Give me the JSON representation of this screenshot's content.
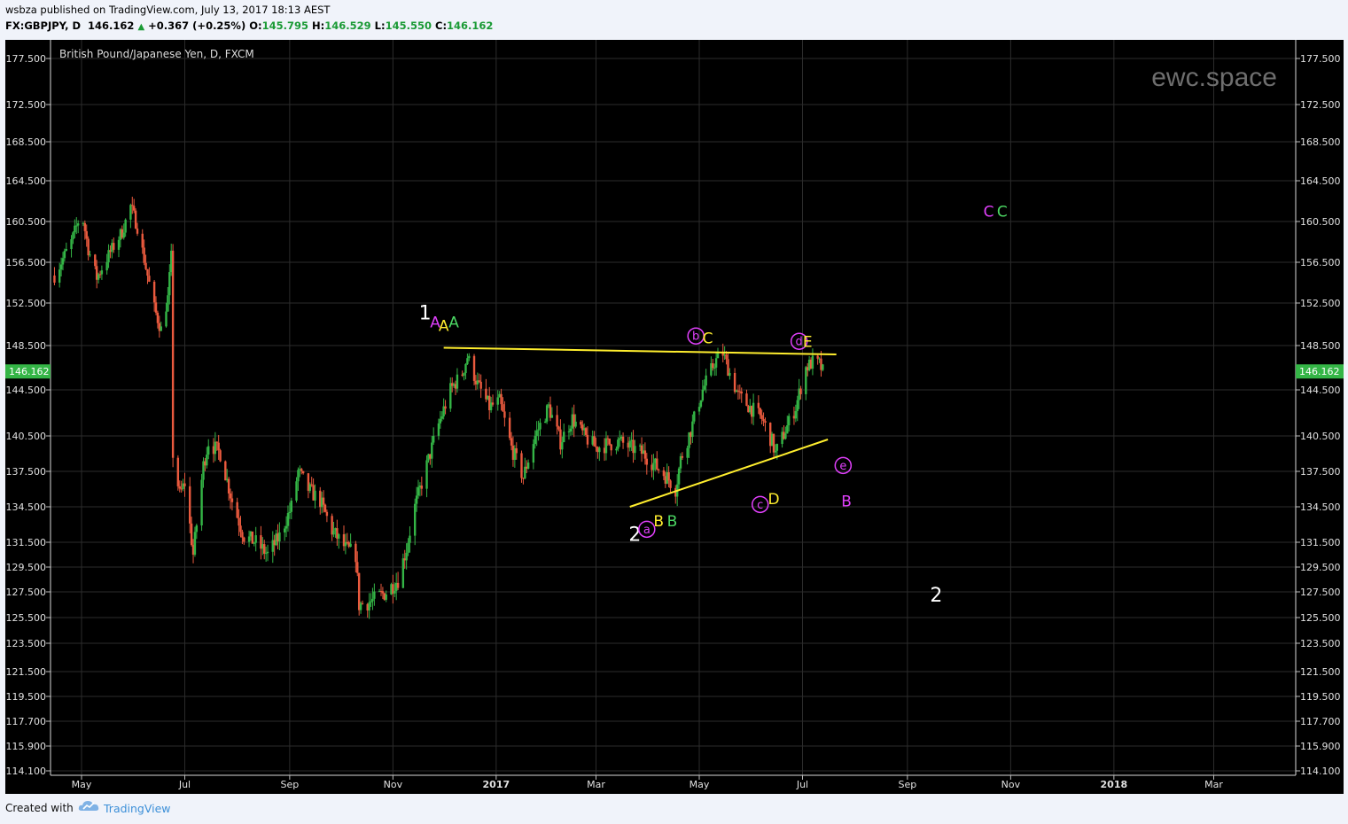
{
  "header": {
    "publish_line": "wsbza published on TradingView.com, July 13, 2017 18:13 AEST",
    "symbol": "FX:GBPJPY, D",
    "last": "146.162",
    "change": "+0.367 (+0.25%)",
    "o_label": "O:",
    "o_value": "145.795",
    "h_label": "H:",
    "h_value": "146.529",
    "l_label": "L:",
    "l_value": "145.550",
    "c_label": "C:",
    "c_value": "146.162"
  },
  "footer": {
    "created_with": "Created with",
    "brand": "TradingView"
  },
  "colors": {
    "up": "#34b546",
    "down": "#ea5a3e",
    "background": "#000000",
    "trendline": "#ffee2e",
    "badge": "#34b546"
  },
  "chart_data": {
    "type": "candlestick",
    "title": "British Pound/Japanese Yen, D, FXCM",
    "watermark": "ewc.space",
    "last_price_label": "146.162",
    "y_ticks": [
      "177.500",
      "172.500",
      "168.500",
      "164.500",
      "160.500",
      "156.500",
      "152.500",
      "148.500",
      "144.500",
      "140.500",
      "137.500",
      "134.500",
      "131.500",
      "129.500",
      "127.500",
      "125.500",
      "123.500",
      "121.500",
      "119.500",
      "117.700",
      "115.900",
      "114.100"
    ],
    "x_ticks": [
      {
        "label": "May",
        "date": "2016-05-01",
        "bold": false
      },
      {
        "label": "Jul",
        "date": "2016-07-01",
        "bold": false
      },
      {
        "label": "Sep",
        "date": "2016-09-01",
        "bold": false
      },
      {
        "label": "Nov",
        "date": "2016-11-01",
        "bold": false
      },
      {
        "label": "2017",
        "date": "2017-01-01",
        "bold": true
      },
      {
        "label": "Mar",
        "date": "2017-03-01",
        "bold": false
      },
      {
        "label": "May",
        "date": "2017-05-01",
        "bold": false
      },
      {
        "label": "Jul",
        "date": "2017-07-01",
        "bold": false
      },
      {
        "label": "Sep",
        "date": "2017-09-01",
        "bold": false
      },
      {
        "label": "Nov",
        "date": "2017-11-01",
        "bold": false
      },
      {
        "label": "2018",
        "date": "2018-01-01",
        "bold": true
      },
      {
        "label": "Mar",
        "date": "2018-03-01",
        "bold": false
      }
    ],
    "price_path": [
      [
        "2016-04-15",
        155.2
      ],
      [
        "2016-04-25",
        158.5
      ],
      [
        "2016-05-01",
        161.5
      ],
      [
        "2016-05-05",
        157.8
      ],
      [
        "2016-05-10",
        155.0
      ],
      [
        "2016-05-18",
        157.5
      ],
      [
        "2016-05-25",
        159.5
      ],
      [
        "2016-05-30",
        162.0
      ],
      [
        "2016-06-03",
        160.0
      ],
      [
        "2016-06-08",
        156.0
      ],
      [
        "2016-06-13",
        152.0
      ],
      [
        "2016-06-17",
        150.0
      ],
      [
        "2016-06-21",
        153.0
      ],
      [
        "2016-06-23",
        157.0
      ],
      [
        "2016-06-24",
        139.0
      ],
      [
        "2016-06-28",
        135.5
      ],
      [
        "2016-07-01",
        136.5
      ],
      [
        "2016-07-06",
        130.5
      ],
      [
        "2016-07-12",
        138.0
      ],
      [
        "2016-07-15",
        140.0
      ],
      [
        "2016-07-22",
        139.0
      ],
      [
        "2016-07-29",
        135.0
      ],
      [
        "2016-08-05",
        132.0
      ],
      [
        "2016-08-12",
        131.5
      ],
      [
        "2016-08-19",
        130.5
      ],
      [
        "2016-08-26",
        132.0
      ],
      [
        "2016-09-02",
        134.5
      ],
      [
        "2016-09-06",
        137.5
      ],
      [
        "2016-09-12",
        136.0
      ],
      [
        "2016-09-19",
        135.0
      ],
      [
        "2016-09-26",
        132.5
      ],
      [
        "2016-10-04",
        131.0
      ],
      [
        "2016-10-10",
        130.5
      ],
      [
        "2016-10-12",
        126.5
      ],
      [
        "2016-10-20",
        126.8
      ],
      [
        "2016-10-28",
        127.5
      ],
      [
        "2016-11-04",
        128.5
      ],
      [
        "2016-11-09",
        131.0
      ],
      [
        "2016-11-14",
        134.5
      ],
      [
        "2016-11-21",
        138.0
      ],
      [
        "2016-11-28",
        141.5
      ],
      [
        "2016-12-05",
        144.5
      ],
      [
        "2016-12-12",
        146.0
      ],
      [
        "2016-12-15",
        147.5
      ],
      [
        "2016-12-21",
        145.0
      ],
      [
        "2016-12-28",
        143.0
      ],
      [
        "2017-01-03",
        143.5
      ],
      [
        "2017-01-10",
        139.5
      ],
      [
        "2017-01-17",
        137.0
      ],
      [
        "2017-01-24",
        140.5
      ],
      [
        "2017-02-01",
        143.0
      ],
      [
        "2017-02-08",
        140.0
      ],
      [
        "2017-02-15",
        142.0
      ],
      [
        "2017-02-22",
        140.5
      ],
      [
        "2017-03-01",
        139.5
      ],
      [
        "2017-03-08",
        139.8
      ],
      [
        "2017-03-15",
        140.0
      ],
      [
        "2017-03-22",
        139.5
      ],
      [
        "2017-03-29",
        139.0
      ],
      [
        "2017-04-05",
        138.0
      ],
      [
        "2017-04-12",
        137.0
      ],
      [
        "2017-04-17",
        136.0
      ],
      [
        "2017-04-20",
        138.5
      ],
      [
        "2017-04-26",
        141.0
      ],
      [
        "2017-05-03",
        144.5
      ],
      [
        "2017-05-10",
        147.0
      ],
      [
        "2017-05-15",
        147.8
      ],
      [
        "2017-05-19",
        146.0
      ],
      [
        "2017-05-24",
        144.0
      ],
      [
        "2017-05-31",
        143.0
      ],
      [
        "2017-06-07",
        142.0
      ],
      [
        "2017-06-13",
        140.0
      ],
      [
        "2017-06-15",
        139.0
      ],
      [
        "2017-06-21",
        141.0
      ],
      [
        "2017-06-27",
        143.0
      ],
      [
        "2017-07-03",
        146.5
      ],
      [
        "2017-07-07",
        147.0
      ],
      [
        "2017-07-11",
        146.8
      ],
      [
        "2017-07-13",
        146.162
      ]
    ],
    "trendlines": [
      {
        "from": [
          "2016-12-01",
          148.3
        ],
        "to": [
          "2017-07-21",
          147.7
        ]
      },
      {
        "from": [
          "2017-03-21",
          134.5
        ],
        "to": [
          "2017-07-16",
          140.2
        ]
      }
    ],
    "annotations": [
      {
        "text": "1",
        "date": "2016-11-20",
        "price": 151.6,
        "color": "#ffffff",
        "size": 22
      },
      {
        "text": "A",
        "date": "2016-11-26",
        "price": 150.7,
        "color": "#e040fb",
        "size": 17
      },
      {
        "text": "A",
        "date": "2016-12-01",
        "price": 150.4,
        "color": "#ffee2e",
        "size": 17
      },
      {
        "text": "A",
        "date": "2016-12-07",
        "price": 150.7,
        "color": "#4cd964",
        "size": 17
      },
      {
        "text": "b",
        "date": "2017-04-29",
        "price": 149.4,
        "color": "#e040fb",
        "size": 13,
        "circled": true
      },
      {
        "text": "C",
        "date": "2017-05-06",
        "price": 149.2,
        "color": "#ffee2e",
        "size": 17
      },
      {
        "text": "d",
        "date": "2017-06-29",
        "price": 148.9,
        "color": "#e040fb",
        "size": 13,
        "circled": true
      },
      {
        "text": "E",
        "date": "2017-07-04",
        "price": 148.9,
        "color": "#ffee2e",
        "size": 17
      },
      {
        "text": "e",
        "date": "2017-07-25",
        "price": 138.0,
        "color": "#e040fb",
        "size": 13,
        "circled": true
      },
      {
        "text": "B",
        "date": "2017-07-27",
        "price": 135.0,
        "color": "#e040fb",
        "size": 17
      },
      {
        "text": "D",
        "date": "2017-06-14",
        "price": 135.2,
        "color": "#ffee2e",
        "size": 17
      },
      {
        "text": "c",
        "date": "2017-06-06",
        "price": 134.7,
        "color": "#e040fb",
        "size": 13,
        "circled": true
      },
      {
        "text": "2",
        "date": "2017-03-24",
        "price": 132.2,
        "color": "#ffffff",
        "size": 22
      },
      {
        "text": "a",
        "date": "2017-03-31",
        "price": 132.6,
        "color": "#e040fb",
        "size": 13,
        "circled": true
      },
      {
        "text": "B",
        "date": "2017-04-07",
        "price": 133.3,
        "color": "#ffee2e",
        "size": 17
      },
      {
        "text": "B",
        "date": "2017-04-15",
        "price": 133.3,
        "color": "#4cd964",
        "size": 17
      },
      {
        "text": "C",
        "date": "2017-10-19",
        "price": 161.5,
        "color": "#e040fb",
        "size": 17
      },
      {
        "text": "C",
        "date": "2017-10-27",
        "price": 161.5,
        "color": "#4cd964",
        "size": 17
      },
      {
        "text": "2",
        "date": "2017-09-18",
        "price": 127.3,
        "color": "#ffffff",
        "size": 22
      }
    ]
  }
}
